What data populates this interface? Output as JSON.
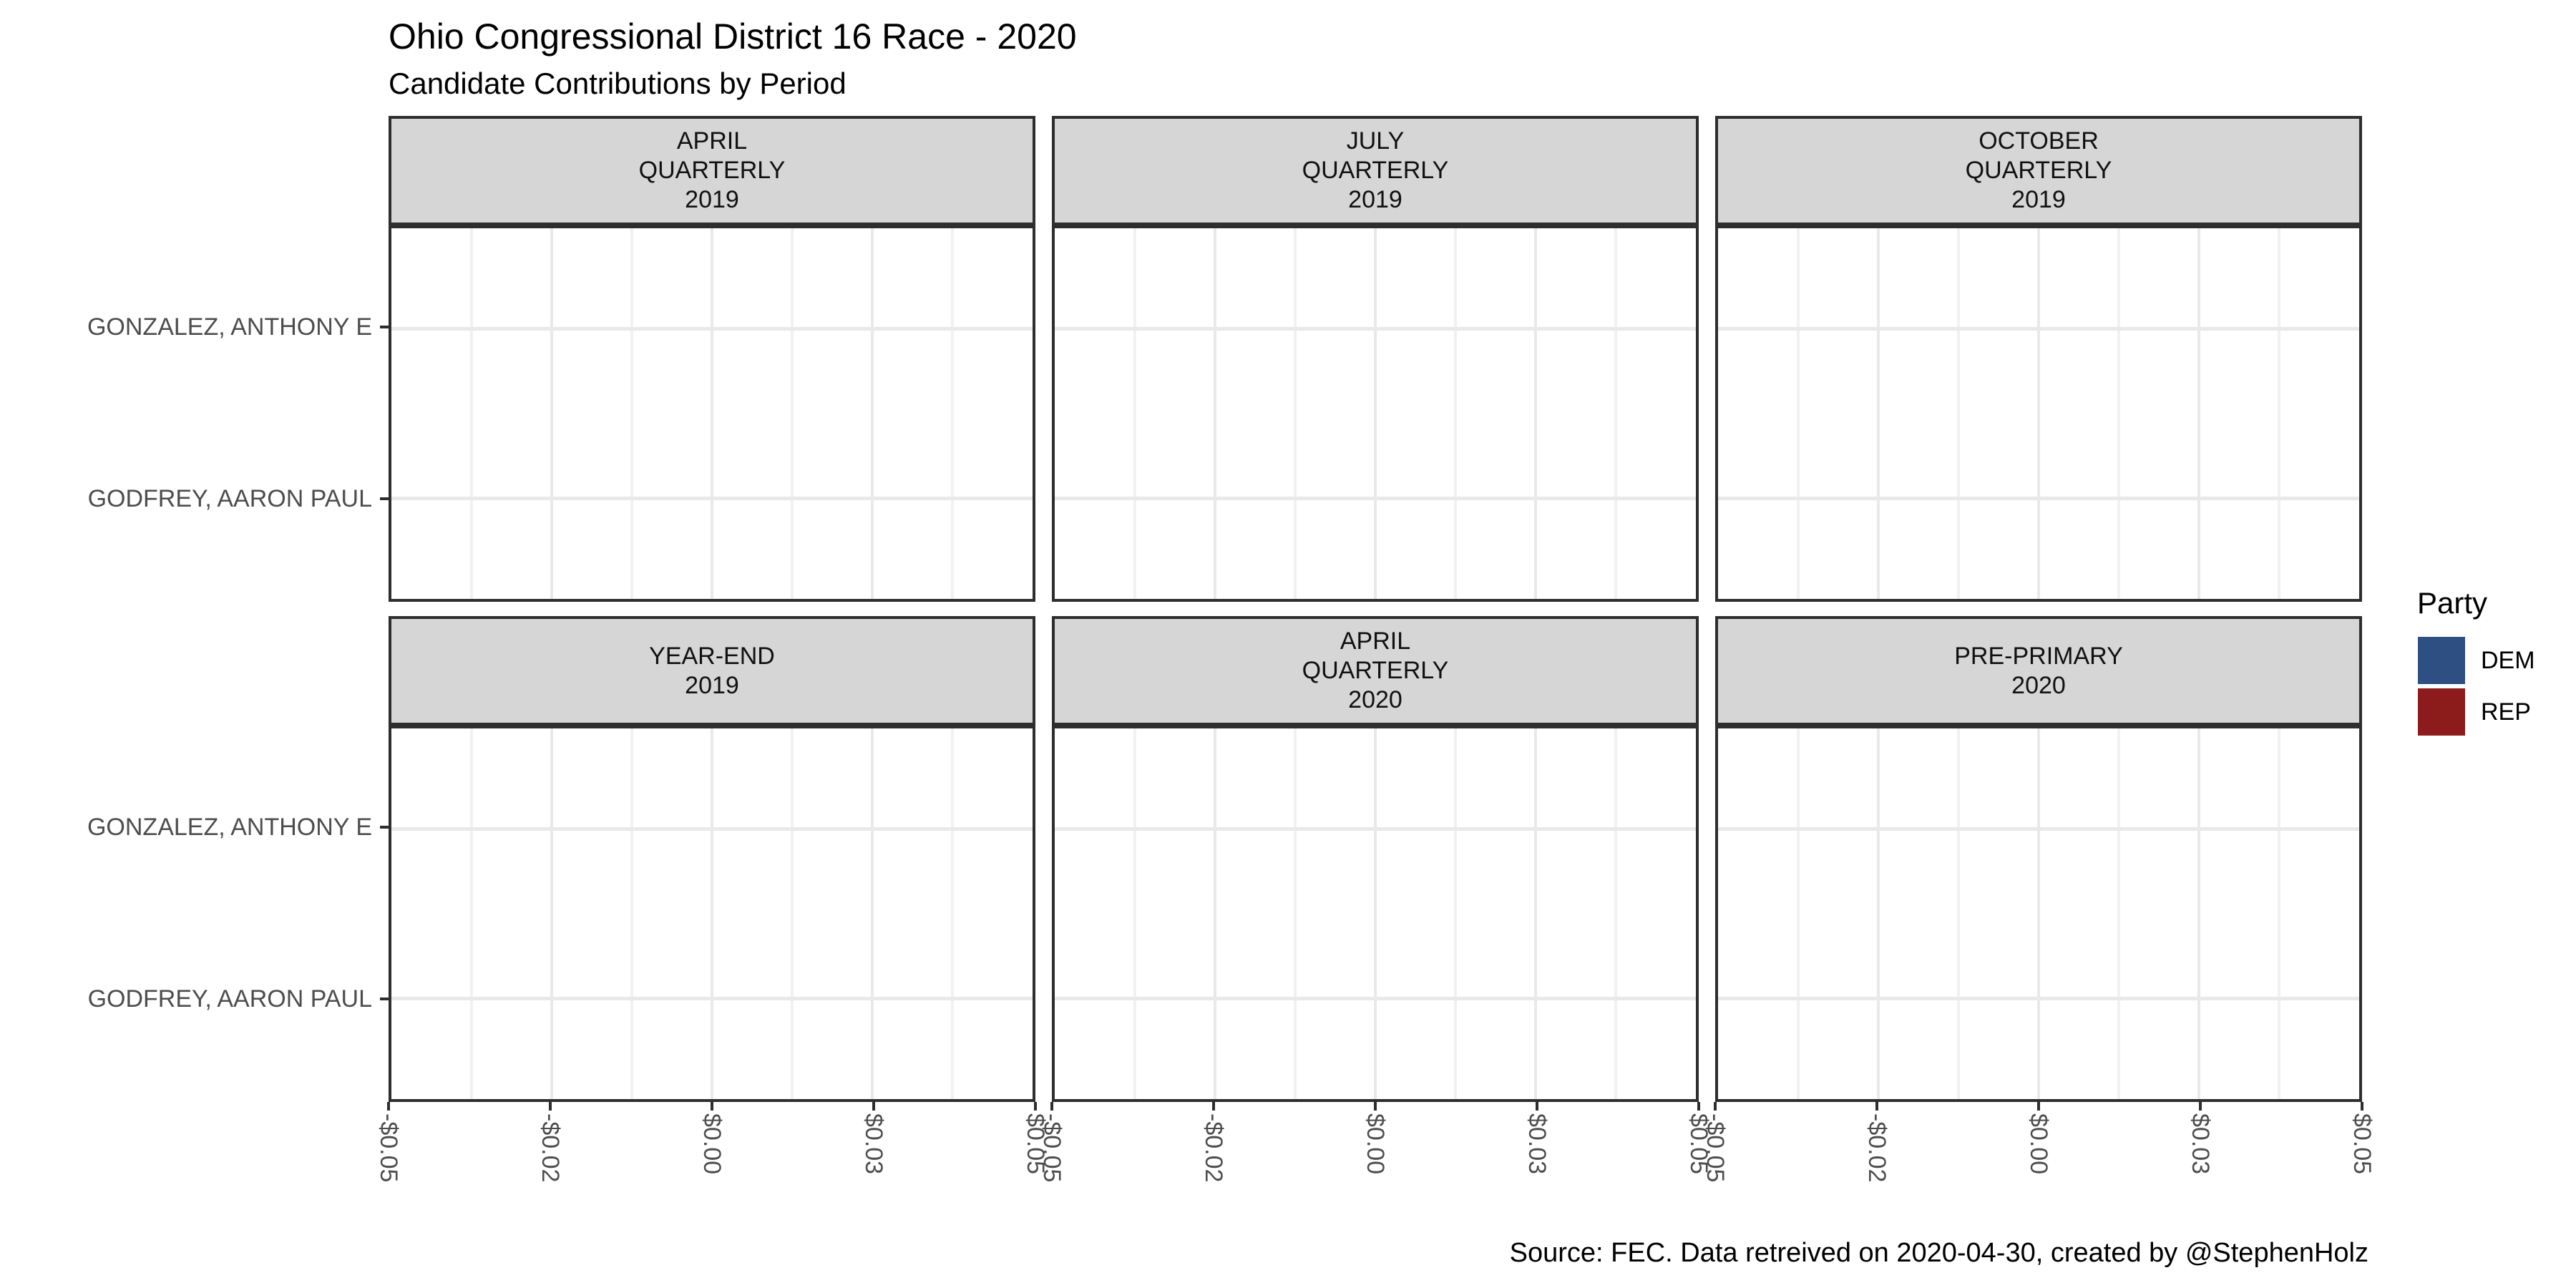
{
  "title": "Ohio Congressional District 16 Race - 2020",
  "subtitle": "Candidate Contributions by Period",
  "caption": "Source: FEC. Data retreived on 2020-04-30, created by @StephenHolz",
  "y_axis": {
    "categories": [
      "GONZALEZ, ANTHONY E",
      "GODFREY, AARON PAUL"
    ]
  },
  "x_axis": {
    "tick_labels": [
      "-$0.05",
      "-$0.02",
      "$0.00",
      "$0.03",
      "$0.05"
    ]
  },
  "facets": [
    {
      "label": "APRIL QUARTERLY 2019",
      "lines": [
        "APRIL",
        "QUARTERLY",
        "2019"
      ]
    },
    {
      "label": "JULY QUARTERLY 2019",
      "lines": [
        "JULY",
        "QUARTERLY",
        "2019"
      ]
    },
    {
      "label": "OCTOBER QUARTERLY 2019",
      "lines": [
        "OCTOBER",
        "QUARTERLY",
        "2019"
      ]
    },
    {
      "label": "YEAR-END 2019",
      "lines": [
        "YEAR-END",
        "2019"
      ]
    },
    {
      "label": "APRIL QUARTERLY 2020",
      "lines": [
        "APRIL",
        "QUARTERLY",
        "2020"
      ]
    },
    {
      "label": "PRE-PRIMARY 2020",
      "lines": [
        "PRE-PRIMARY",
        "2020"
      ]
    }
  ],
  "legend": {
    "title": "Party",
    "items": [
      {
        "label": "DEM",
        "color": "#2D4F81"
      },
      {
        "label": "REP",
        "color": "#8C1B1B"
      }
    ]
  },
  "colors": {
    "strip_fill": "#D6D6D6",
    "panel_border": "#2E2E2E",
    "grid_major": "#E9E9E9",
    "grid_minor": "#F1F1F1",
    "axis_text": "#4D4D4D",
    "dem": "#2D4F81",
    "rep": "#8C1B1B"
  },
  "chart_data": {
    "type": "bar",
    "orientation": "horizontal",
    "title": "Ohio Congressional District 16 Race - 2020",
    "subtitle": "Candidate Contributions by Period",
    "caption": "Source: FEC. Data retreived on 2020-04-30, created by @StephenHolz",
    "facet_variable": "reporting period",
    "facets": [
      "APRIL QUARTERLY 2019",
      "JULY QUARTERLY 2019",
      "OCTOBER QUARTERLY 2019",
      "YEAR-END 2019",
      "APRIL QUARTERLY 2020",
      "PRE-PRIMARY 2020"
    ],
    "categories": [
      "GONZALEZ, ANTHONY E",
      "GODFREY, AARON PAUL"
    ],
    "series": [
      {
        "name": "GONZALEZ, ANTHONY E",
        "values": [
          0,
          0,
          0,
          0,
          0,
          0
        ]
      },
      {
        "name": "GODFREY, AARON PAUL",
        "values": [
          0,
          0,
          0,
          0,
          0,
          0
        ]
      }
    ],
    "xlabel": "",
    "ylabel": "",
    "xlim": [
      -0.05,
      0.05
    ],
    "x_breaks": [
      -0.05,
      -0.025,
      0,
      0.025,
      0.05
    ],
    "x_tick_labels": [
      "-$0.05",
      "-$0.02",
      "$0.00",
      "$0.03",
      "$0.05"
    ],
    "legend": {
      "title": "Party",
      "position": "right",
      "entries": [
        "DEM",
        "REP"
      ]
    },
    "grid": true,
    "note": "All panels are empty: every contribution value shown is $0.00, so no bars are visible."
  }
}
